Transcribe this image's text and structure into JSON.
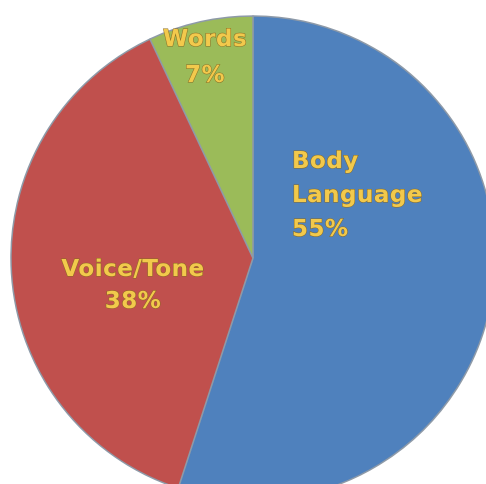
{
  "chart_data": {
    "type": "pie",
    "title": "",
    "slices": [
      {
        "label_lines": [
          "Body",
          "Language"
        ],
        "percent_label": "55%",
        "value": 55,
        "color": "#4f81bd"
      },
      {
        "label_lines": [
          "Voice/Tone"
        ],
        "percent_label": "38%",
        "value": 38,
        "color": "#c0504d"
      },
      {
        "label_lines": [
          "Words"
        ],
        "percent_label": "7%",
        "value": 7,
        "color": "#9bbb59"
      }
    ],
    "label_color": "#f2c94c",
    "slice_border_color": "#8e9aa8"
  }
}
